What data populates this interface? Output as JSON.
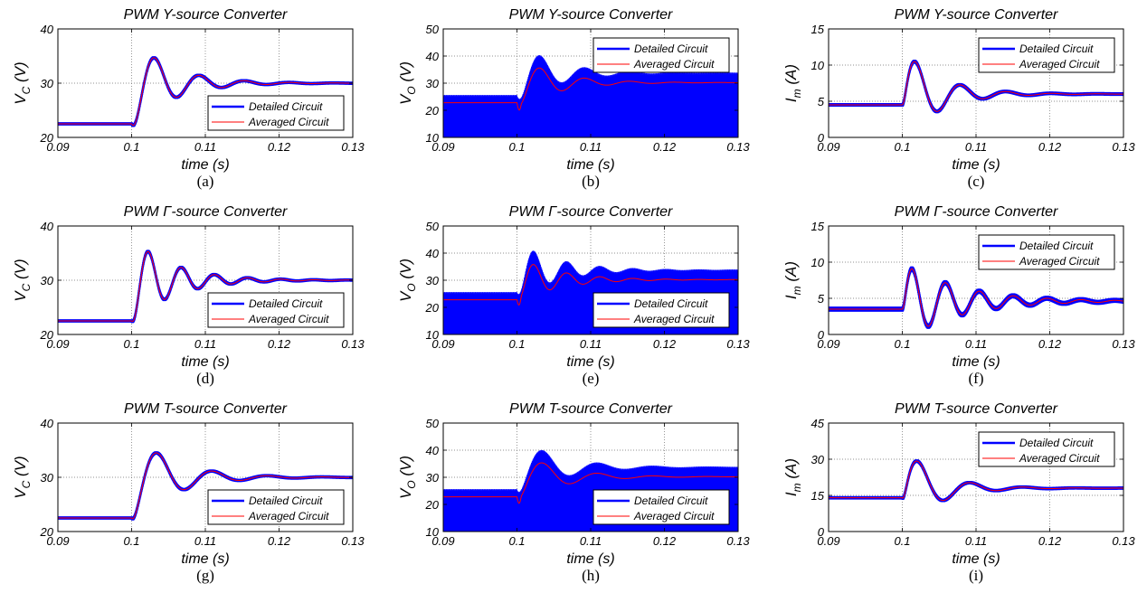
{
  "chart_data": [
    {
      "type": "line",
      "panel": "(a)",
      "title": "PWM Y-source Converter",
      "ylabel_main": "V",
      "ylabel_sub": "C",
      "ylabel_unit": " (V)",
      "xlabel": "time (s)",
      "xlim": [
        0.09,
        0.13
      ],
      "ylim": [
        20,
        40
      ],
      "xticks": [
        "0.09",
        "0.1",
        "0.11",
        "0.12",
        "0.13"
      ],
      "yticks": [
        "20",
        "30",
        "40"
      ],
      "grid": true,
      "legend_position": "bottom-right",
      "series": [
        {
          "name": "Detailed Circuit",
          "color": "#0000ff",
          "ripple": 0.3
        },
        {
          "name": "Averaged Circuit",
          "color": "#ff0000",
          "ripple": 0
        }
      ],
      "wave": {
        "t0": 0.1,
        "initial": 22.5,
        "final": 30.0,
        "peak": 34.6,
        "t_peak": 0.1032,
        "period": 0.0061,
        "decay": 0.0052
      }
    },
    {
      "type": "line",
      "panel": "(b)",
      "title": "PWM Y-source Converter",
      "ylabel_main": "V",
      "ylabel_sub": "O",
      "ylabel_unit": " (V)",
      "xlabel": "time (s)",
      "xlim": [
        0.09,
        0.13
      ],
      "ylim": [
        10,
        50
      ],
      "xticks": [
        "0.09",
        "0.1",
        "0.11",
        "0.12",
        "0.13"
      ],
      "yticks": [
        "10",
        "20",
        "30",
        "40",
        "50"
      ],
      "grid": true,
      "legend_position": "top-right",
      "series": [
        {
          "name": "Detailed Circuit",
          "color": "#0000ff",
          "band_to": 10
        },
        {
          "name": "Averaged Circuit",
          "color": "#ff0000",
          "ripple": 0
        }
      ],
      "wave": {
        "t0": 0.1,
        "initial": 22.8,
        "final": 30.2,
        "peak": 35.5,
        "t_peak": 0.1032,
        "period": 0.0061,
        "decay": 0.0052,
        "dip": -1.8
      },
      "band_upper": {
        "initial": 25.2,
        "final": 33.5,
        "peak": 39.8,
        "t_peak": 0.1032,
        "period": 0.0061,
        "decay": 0.0052
      }
    },
    {
      "type": "line",
      "panel": "(c)",
      "title": "PWM Y-source Converter",
      "ylabel_main": "I",
      "ylabel_sub": "m",
      "ylabel_unit": " (A)",
      "xlabel": "time (s)",
      "xlim": [
        0.09,
        0.13
      ],
      "ylim": [
        0,
        15
      ],
      "xticks": [
        "0.09",
        "0.1",
        "0.11",
        "0.12",
        "0.13"
      ],
      "yticks": [
        "0",
        "5",
        "10",
        "15"
      ],
      "grid": true,
      "legend_position": "top-right",
      "series": [
        {
          "name": "Detailed Circuit",
          "color": "#0000ff",
          "ripple": 0.25
        },
        {
          "name": "Averaged Circuit",
          "color": "#ff0000",
          "ripple": 0
        }
      ],
      "wave": {
        "t0": 0.1,
        "initial": 4.5,
        "final": 6.0,
        "peak": 10.5,
        "t_peak": 0.1018,
        "period": 0.0062,
        "decay": 0.0048
      }
    },
    {
      "type": "line",
      "panel": "(d)",
      "title": "PWM Γ-source Converter",
      "ylabel_main": "V",
      "ylabel_sub": "C",
      "ylabel_unit": " (V)",
      "xlabel": "time (s)",
      "xlim": [
        0.09,
        0.13
      ],
      "ylim": [
        20,
        40
      ],
      "xticks": [
        "0.09",
        "0.1",
        "0.11",
        "0.12",
        "0.13"
      ],
      "yticks": [
        "20",
        "30",
        "40"
      ],
      "grid": true,
      "legend_position": "bottom-right",
      "series": [
        {
          "name": "Detailed Circuit",
          "color": "#0000ff",
          "ripple": 0.3
        },
        {
          "name": "Averaged Circuit",
          "color": "#ff0000",
          "ripple": 0
        }
      ],
      "wave": {
        "t0": 0.1,
        "initial": 22.5,
        "final": 30.0,
        "peak": 35.3,
        "t_peak": 0.1023,
        "period": 0.0045,
        "decay": 0.0055
      }
    },
    {
      "type": "line",
      "panel": "(e)",
      "title": "PWM Γ-source Converter",
      "ylabel_main": "V",
      "ylabel_sub": "O",
      "ylabel_unit": " (V)",
      "xlabel": "time (s)",
      "xlim": [
        0.09,
        0.13
      ],
      "ylim": [
        10,
        50
      ],
      "xticks": [
        "0.09",
        "0.1",
        "0.11",
        "0.12",
        "0.13"
      ],
      "yticks": [
        "10",
        "20",
        "30",
        "40",
        "50"
      ],
      "grid": true,
      "legend_position": "bottom-right",
      "series": [
        {
          "name": "Detailed Circuit",
          "color": "#0000ff",
          "band_to": 10
        },
        {
          "name": "Averaged Circuit",
          "color": "#ff0000",
          "ripple": 0
        }
      ],
      "wave": {
        "t0": 0.1,
        "initial": 22.8,
        "final": 30.2,
        "peak": 35.8,
        "t_peak": 0.1023,
        "period": 0.0045,
        "decay": 0.0055,
        "dip": -1.8
      },
      "band_upper": {
        "initial": 25.2,
        "final": 33.5,
        "peak": 40.5,
        "t_peak": 0.1023,
        "period": 0.0045,
        "decay": 0.0055
      }
    },
    {
      "type": "line",
      "panel": "(f)",
      "title": "PWM Γ-source Converter",
      "ylabel_main": "I",
      "ylabel_sub": "m",
      "ylabel_unit": " (A)",
      "xlabel": "time (s)",
      "xlim": [
        0.09,
        0.13
      ],
      "ylim": [
        0,
        15
      ],
      "xticks": [
        "0.09",
        "0.1",
        "0.11",
        "0.12",
        "0.13"
      ],
      "yticks": [
        "0",
        "5",
        "10",
        "15"
      ],
      "grid": true,
      "legend_position": "top-right",
      "series": [
        {
          "name": "Detailed Circuit",
          "color": "#0000ff",
          "ripple": 0.35
        },
        {
          "name": "Averaged Circuit",
          "color": "#ff0000",
          "ripple": 0
        }
      ],
      "wave": {
        "t0": 0.1,
        "initial": 3.5,
        "final": 4.6,
        "peak": 9.3,
        "t_peak": 0.1013,
        "period": 0.0046,
        "decay": 0.0075
      }
    },
    {
      "type": "line",
      "panel": "(g)",
      "title": "PWM T-source Converter",
      "ylabel_main": "V",
      "ylabel_sub": "C",
      "ylabel_unit": " (V)",
      "xlabel": "time (s)",
      "xlim": [
        0.09,
        0.13
      ],
      "ylim": [
        20,
        40
      ],
      "xticks": [
        "0.09",
        "0.1",
        "0.11",
        "0.12",
        "0.13"
      ],
      "yticks": [
        "20",
        "30",
        "40"
      ],
      "grid": true,
      "legend_position": "bottom-right",
      "series": [
        {
          "name": "Detailed Circuit",
          "color": "#0000ff",
          "ripple": 0.3
        },
        {
          "name": "Averaged Circuit",
          "color": "#ff0000",
          "ripple": 0
        }
      ],
      "wave": {
        "t0": 0.1,
        "initial": 22.5,
        "final": 30.0,
        "peak": 34.4,
        "t_peak": 0.1036,
        "period": 0.0075,
        "decay": 0.0055
      }
    },
    {
      "type": "line",
      "panel": "(h)",
      "title": "PWM T-source Converter",
      "ylabel_main": "V",
      "ylabel_sub": "O",
      "ylabel_unit": " (V)",
      "xlabel": "time (s)",
      "xlim": [
        0.09,
        0.13
      ],
      "ylim": [
        10,
        50
      ],
      "xticks": [
        "0.09",
        "0.1",
        "0.11",
        "0.12",
        "0.13"
      ],
      "yticks": [
        "10",
        "20",
        "30",
        "40",
        "50"
      ],
      "grid": true,
      "legend_position": "bottom-right",
      "series": [
        {
          "name": "Detailed Circuit",
          "color": "#0000ff",
          "band_to": 10
        },
        {
          "name": "Averaged Circuit",
          "color": "#ff0000",
          "ripple": 0
        }
      ],
      "wave": {
        "t0": 0.1,
        "initial": 22.8,
        "final": 30.2,
        "peak": 35.2,
        "t_peak": 0.1036,
        "period": 0.0075,
        "decay": 0.0055,
        "dip": -1.8
      },
      "band_upper": {
        "initial": 25.2,
        "final": 33.5,
        "peak": 39.5,
        "t_peak": 0.1036,
        "period": 0.0075,
        "decay": 0.0055
      }
    },
    {
      "type": "line",
      "panel": "(i)",
      "title": "PWM T-source Converter",
      "ylabel_main": "I",
      "ylabel_sub": "m",
      "ylabel_unit": " (A)",
      "xlabel": "time (s)",
      "xlim": [
        0.09,
        0.13
      ],
      "ylim": [
        0,
        45
      ],
      "xticks": [
        "0.09",
        "0.1",
        "0.11",
        "0.12",
        "0.13"
      ],
      "yticks": [
        "0",
        "15",
        "30",
        "45"
      ],
      "grid": true,
      "legend_position": "top-right",
      "series": [
        {
          "name": "Detailed Circuit",
          "color": "#0000ff",
          "ripple": 0.7
        },
        {
          "name": "Averaged Circuit",
          "color": "#ff0000",
          "ripple": 0
        }
      ],
      "wave": {
        "t0": 0.1,
        "initial": 14.0,
        "final": 18.0,
        "peak": 29.0,
        "t_peak": 0.1022,
        "period": 0.0072,
        "decay": 0.0045
      }
    }
  ]
}
